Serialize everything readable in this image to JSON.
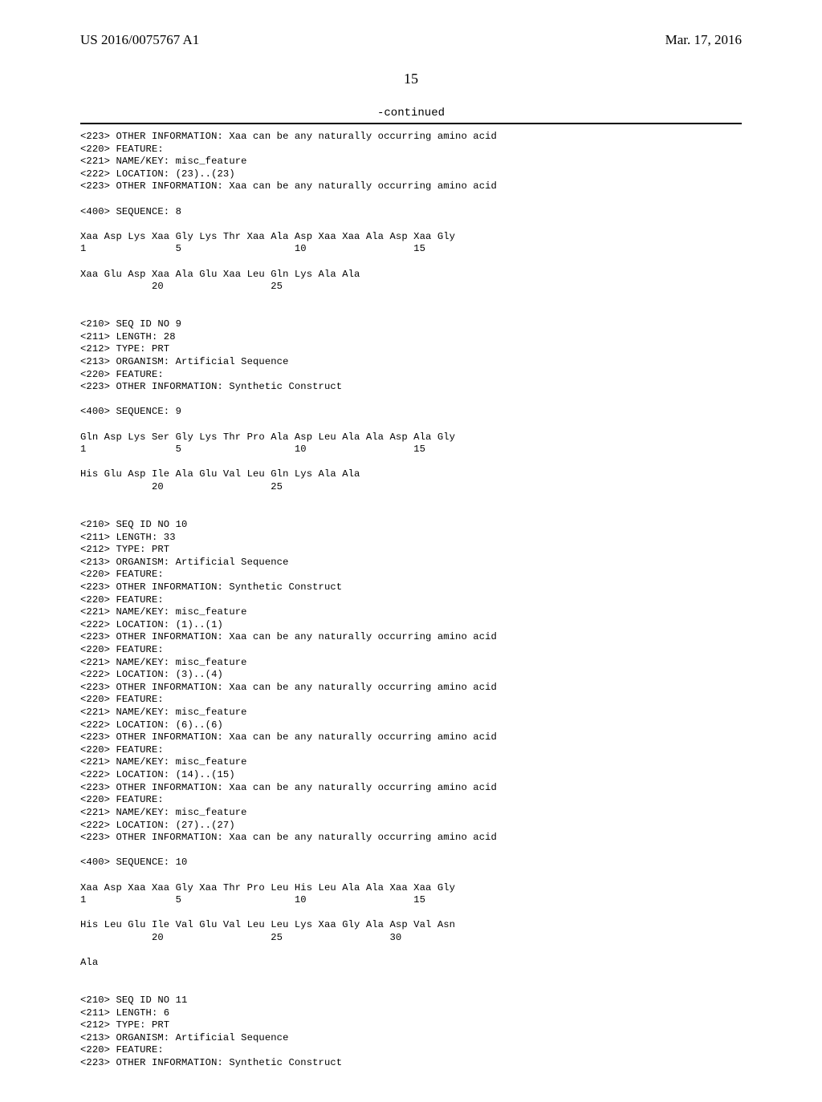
{
  "header": {
    "pub_number": "US 2016/0075767 A1",
    "pub_date": "Mar. 17, 2016"
  },
  "page_number": "15",
  "continued_label": "-continued",
  "listing": "<223> OTHER INFORMATION: Xaa can be any naturally occurring amino acid\n<220> FEATURE:\n<221> NAME/KEY: misc_feature\n<222> LOCATION: (23)..(23)\n<223> OTHER INFORMATION: Xaa can be any naturally occurring amino acid\n\n<400> SEQUENCE: 8\n\nXaa Asp Lys Xaa Gly Lys Thr Xaa Ala Asp Xaa Xaa Ala Asp Xaa Gly\n1               5                   10                  15\n\nXaa Glu Asp Xaa Ala Glu Xaa Leu Gln Lys Ala Ala\n            20                  25\n\n\n<210> SEQ ID NO 9\n<211> LENGTH: 28\n<212> TYPE: PRT\n<213> ORGANISM: Artificial Sequence\n<220> FEATURE:\n<223> OTHER INFORMATION: Synthetic Construct\n\n<400> SEQUENCE: 9\n\nGln Asp Lys Ser Gly Lys Thr Pro Ala Asp Leu Ala Ala Asp Ala Gly\n1               5                   10                  15\n\nHis Glu Asp Ile Ala Glu Val Leu Gln Lys Ala Ala\n            20                  25\n\n\n<210> SEQ ID NO 10\n<211> LENGTH: 33\n<212> TYPE: PRT\n<213> ORGANISM: Artificial Sequence\n<220> FEATURE:\n<223> OTHER INFORMATION: Synthetic Construct\n<220> FEATURE:\n<221> NAME/KEY: misc_feature\n<222> LOCATION: (1)..(1)\n<223> OTHER INFORMATION: Xaa can be any naturally occurring amino acid\n<220> FEATURE:\n<221> NAME/KEY: misc_feature\n<222> LOCATION: (3)..(4)\n<223> OTHER INFORMATION: Xaa can be any naturally occurring amino acid\n<220> FEATURE:\n<221> NAME/KEY: misc_feature\n<222> LOCATION: (6)..(6)\n<223> OTHER INFORMATION: Xaa can be any naturally occurring amino acid\n<220> FEATURE:\n<221> NAME/KEY: misc_feature\n<222> LOCATION: (14)..(15)\n<223> OTHER INFORMATION: Xaa can be any naturally occurring amino acid\n<220> FEATURE:\n<221> NAME/KEY: misc_feature\n<222> LOCATION: (27)..(27)\n<223> OTHER INFORMATION: Xaa can be any naturally occurring amino acid\n\n<400> SEQUENCE: 10\n\nXaa Asp Xaa Xaa Gly Xaa Thr Pro Leu His Leu Ala Ala Xaa Xaa Gly\n1               5                   10                  15\n\nHis Leu Glu Ile Val Glu Val Leu Leu Lys Xaa Gly Ala Asp Val Asn\n            20                  25                  30\n\nAla\n\n\n<210> SEQ ID NO 11\n<211> LENGTH: 6\n<212> TYPE: PRT\n<213> ORGANISM: Artificial Sequence\n<220> FEATURE:\n<223> OTHER INFORMATION: Synthetic Construct"
}
